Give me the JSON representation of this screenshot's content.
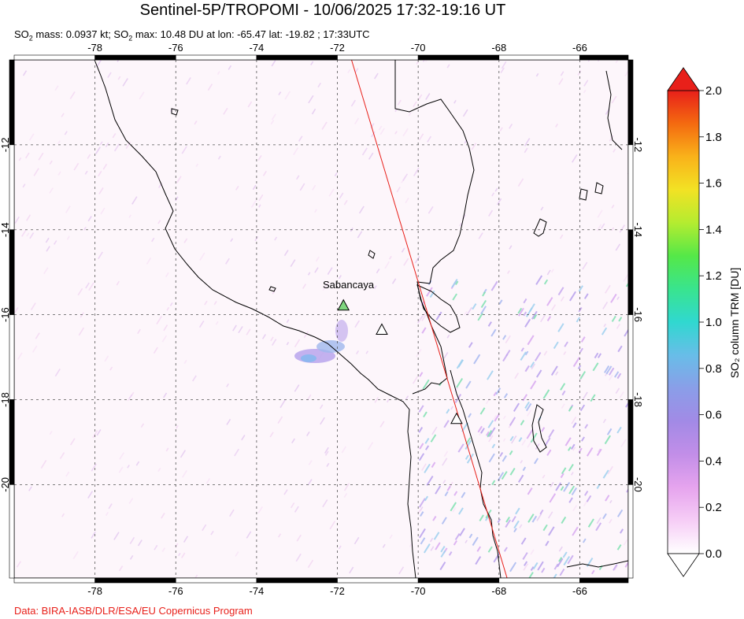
{
  "title": "Sentinel-5P/TROPOMI - 10/06/2025 17:32-19:16 UT",
  "subtitle": {
    "so2_label_1": "SO",
    "sub_1": "2",
    "mass_text": " mass: 0.0937 kt; SO",
    "sub_2": "2",
    "max_text": " max: 10.48 DU at lon: -65.47 lat: -19.82 ; 17:33UTC"
  },
  "credit": "Data: BIRA-IASB/DLR/ESA/EU Copernicus Program",
  "map": {
    "lon_ticks": [
      "-78",
      "-76",
      "-74",
      "-72",
      "-70",
      "-68",
      "-66"
    ],
    "lat_ticks": [
      "-12",
      "-14",
      "-16",
      "-18",
      "-20"
    ],
    "lon_range": [
      -80,
      -64.8
    ],
    "lat_range": [
      -22.2,
      -10
    ],
    "volcano_label": "Sabancaya",
    "volcanoes": [
      {
        "name": "Sabancaya",
        "lon": -71.85,
        "lat": -15.78,
        "fill": "#7fd67f"
      },
      {
        "name": "",
        "lon": -70.9,
        "lat": -16.35,
        "fill": "#ffffff"
      },
      {
        "name": "",
        "lon": -69.05,
        "lat": -18.45,
        "fill": "#ffffff"
      }
    ],
    "orbit_line": {
      "start": [
        -71.65,
        -10
      ],
      "end": [
        -67.8,
        -22.2
      ],
      "color": "#e8201a"
    }
  },
  "colorbar": {
    "label": "SO₂ column TRM [DU]",
    "ticks": [
      "2.0",
      "1.8",
      "1.6",
      "1.4",
      "1.2",
      "1.0",
      "0.8",
      "0.6",
      "0.4",
      "0.2",
      "0.0"
    ],
    "colors_top_to_bottom": [
      "#e8201a",
      "#f46a10",
      "#f9b21a",
      "#f2e224",
      "#b4ec30",
      "#55e848",
      "#39e48e",
      "#30d8d0",
      "#68bde8",
      "#8a9ee8",
      "#a28ae6",
      "#c28ee8",
      "#e6a4ee",
      "#f6cdf6",
      "#ffffff"
    ]
  }
}
